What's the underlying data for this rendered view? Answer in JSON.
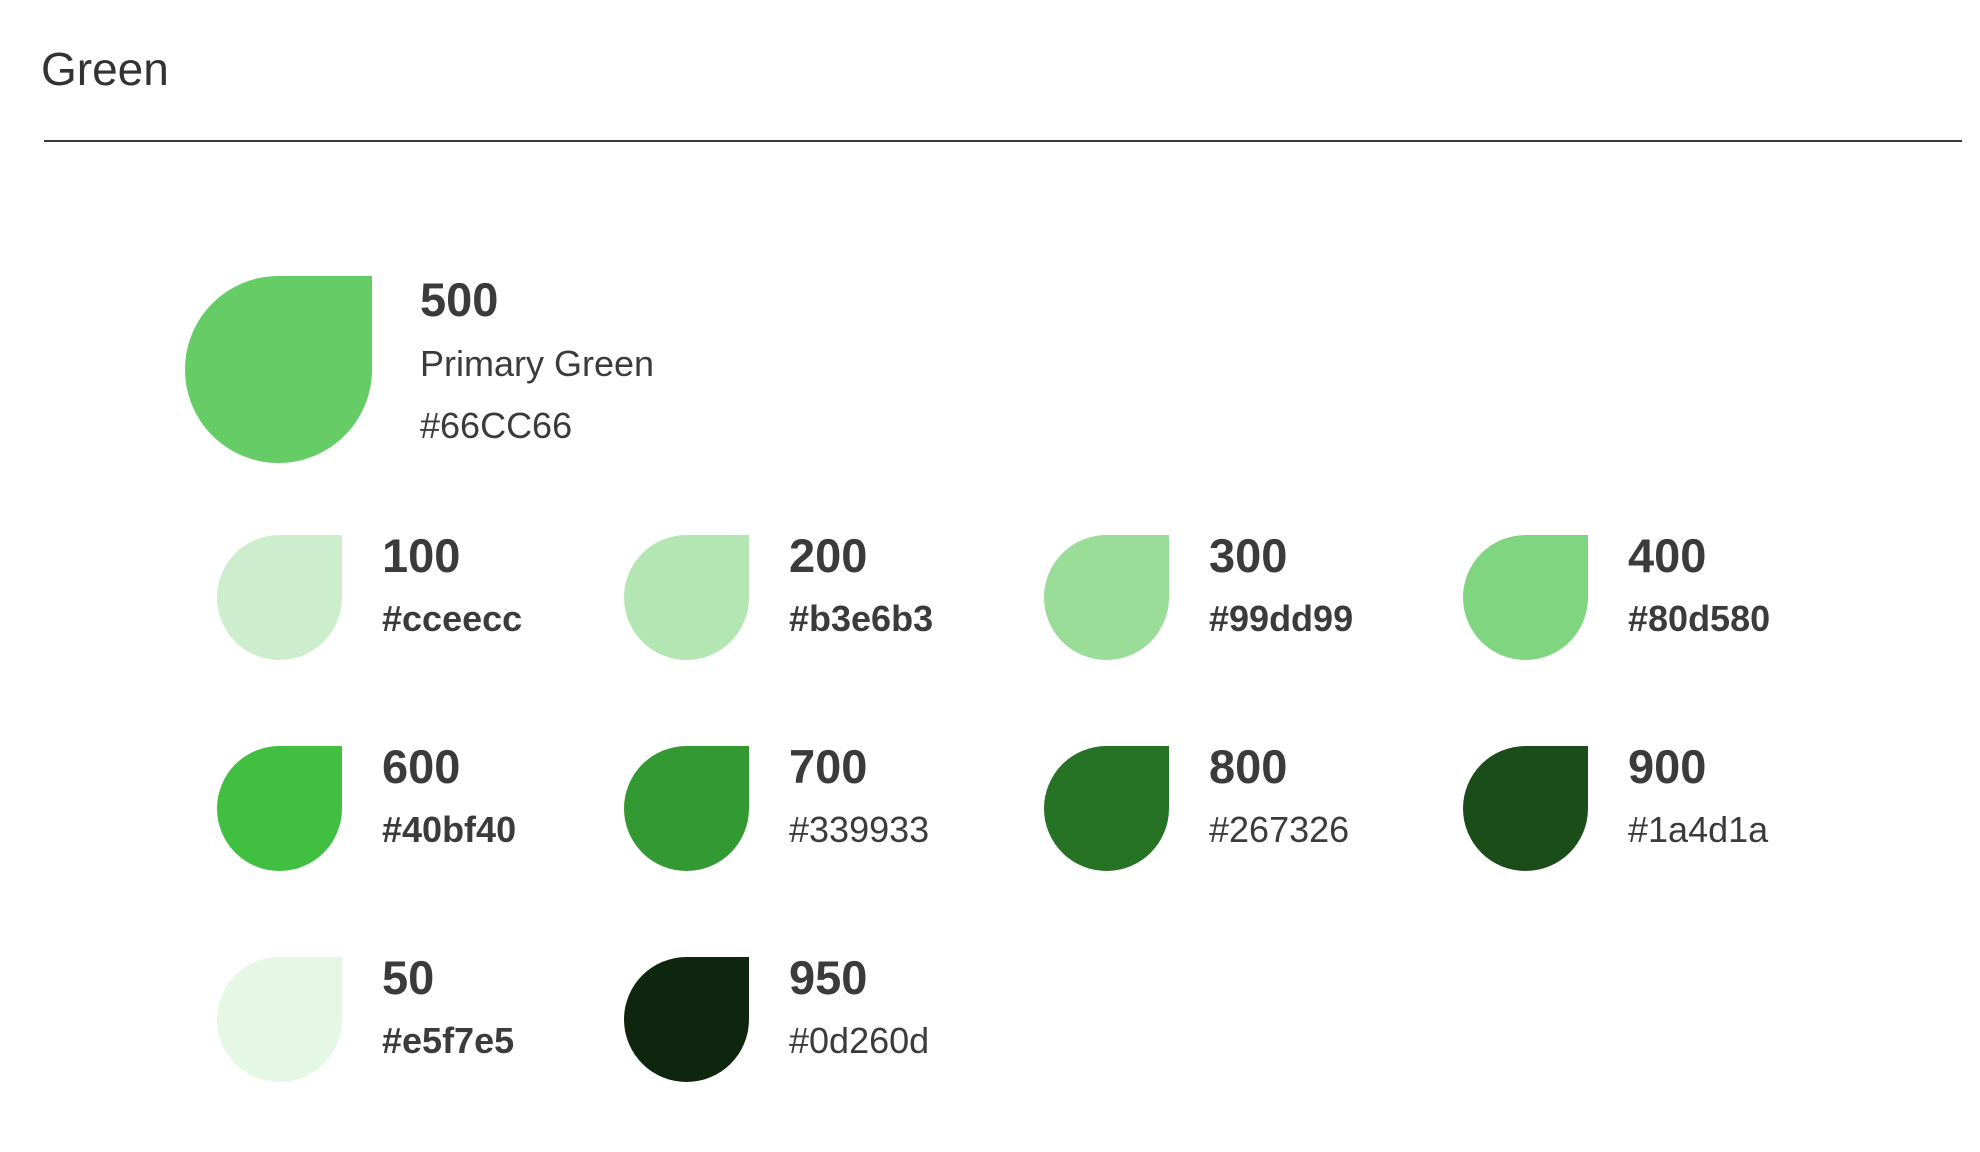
{
  "title": "Green",
  "primary": {
    "name": "500",
    "label": "Primary Green",
    "hex": "#66CC66",
    "color": "#66cc66"
  },
  "swatches": [
    {
      "name": "100",
      "hex": "#cceecc",
      "color": "#cceecc",
      "bold_hex": true
    },
    {
      "name": "200",
      "hex": "#b3e6b3",
      "color": "#b3e6b3",
      "bold_hex": true
    },
    {
      "name": "300",
      "hex": "#99dd99",
      "color": "#99dd99",
      "bold_hex": true
    },
    {
      "name": "400",
      "hex": "#80d580",
      "color": "#80d580",
      "bold_hex": true
    },
    {
      "name": "600",
      "hex": "#40bf40",
      "color": "#40bf40",
      "bold_hex": true
    },
    {
      "name": "700",
      "hex": "#339933",
      "color": "#339933",
      "bold_hex": false
    },
    {
      "name": "800",
      "hex": "#267326",
      "color": "#267326",
      "bold_hex": false
    },
    {
      "name": "900",
      "hex": "#1a4d1a",
      "color": "#1a4d1a",
      "bold_hex": false
    },
    {
      "name": "50",
      "hex": "#e5f7e5",
      "color": "#e5f7e5",
      "bold_hex": true
    },
    {
      "name": "950",
      "hex": "#0d260d",
      "color": "#0d260d",
      "bold_hex": false
    }
  ]
}
